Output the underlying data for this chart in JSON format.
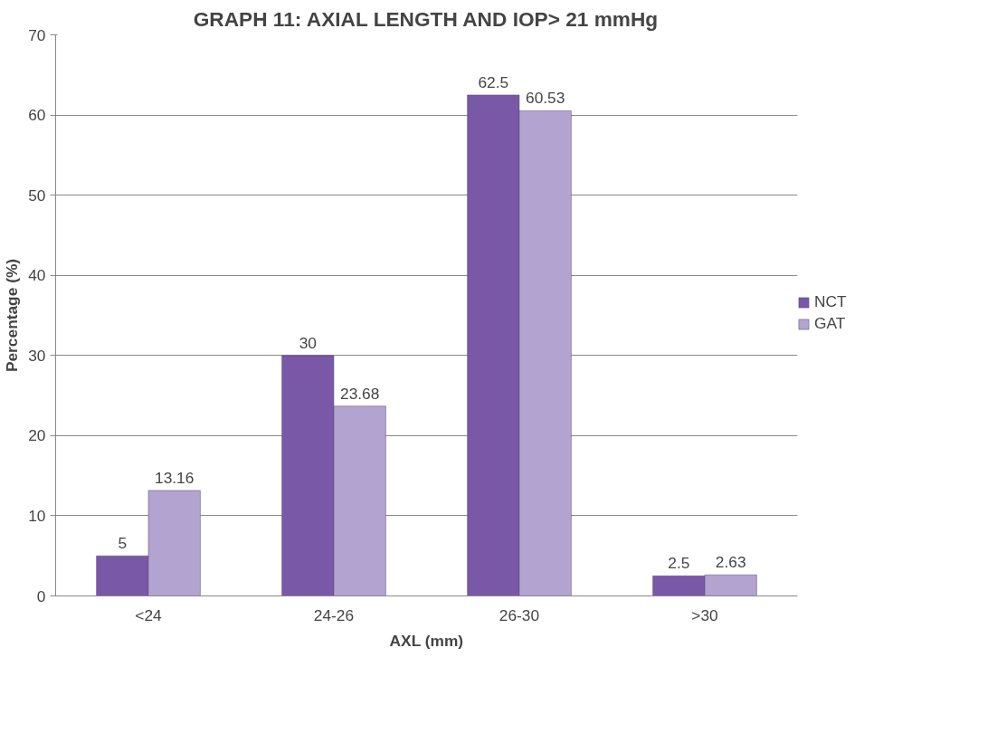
{
  "chart_data": {
    "type": "bar",
    "title": "GRAPH 11: AXIAL LENGTH AND IOP> 21 mmHg",
    "xlabel": "AXL (mm)",
    "ylabel": "Percentage (%)",
    "categories": [
      "<24",
      "24-26",
      "26-30",
      ">30"
    ],
    "series": [
      {
        "name": "NCT",
        "color": "#7a58a8",
        "values": [
          5,
          30,
          62.5,
          2.5
        ]
      },
      {
        "name": "GAT",
        "color": "#b3a3d0",
        "values": [
          13.16,
          23.68,
          60.53,
          2.63
        ]
      }
    ],
    "ylim": [
      0,
      70
    ],
    "yticks": [
      0,
      10,
      20,
      30,
      40,
      50,
      60,
      70
    ],
    "grid": "y",
    "legend": "right",
    "data_labels": true
  }
}
